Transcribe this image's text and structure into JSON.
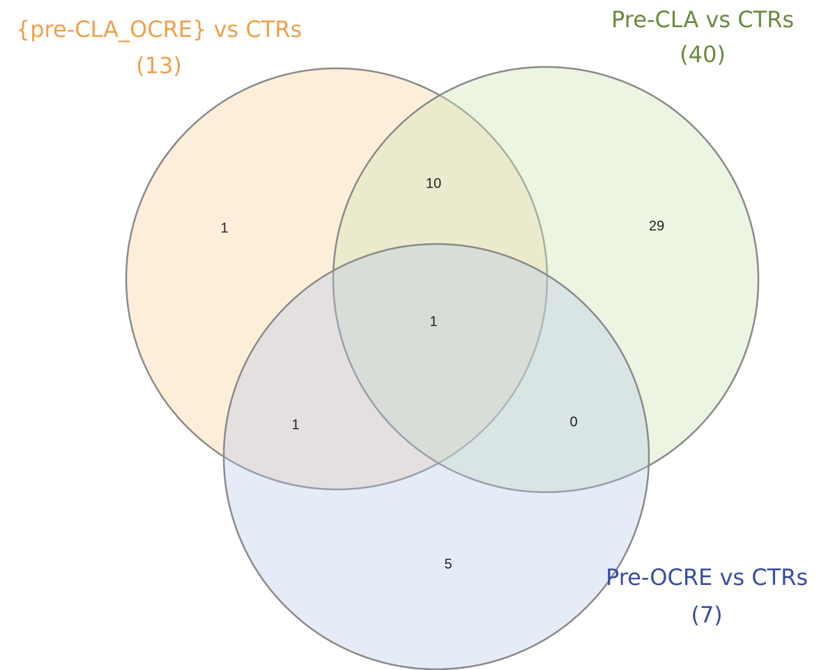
{
  "sets": [
    {
      "name": "{pre-CLA_OCRE} vs CTRs",
      "count": "(13)"
    },
    {
      "name": "Pre-CLA vs CTRs",
      "count": "(40)"
    },
    {
      "name": "Pre-OCRE vs CTRs",
      "count": "(7)"
    }
  ],
  "regions": {
    "only_1": 1,
    "sets_1_2": 10,
    "only_2": 29,
    "sets_1_2_3": 1,
    "sets_1_3": 1,
    "sets_2_3": 0,
    "only_3": 5
  }
}
